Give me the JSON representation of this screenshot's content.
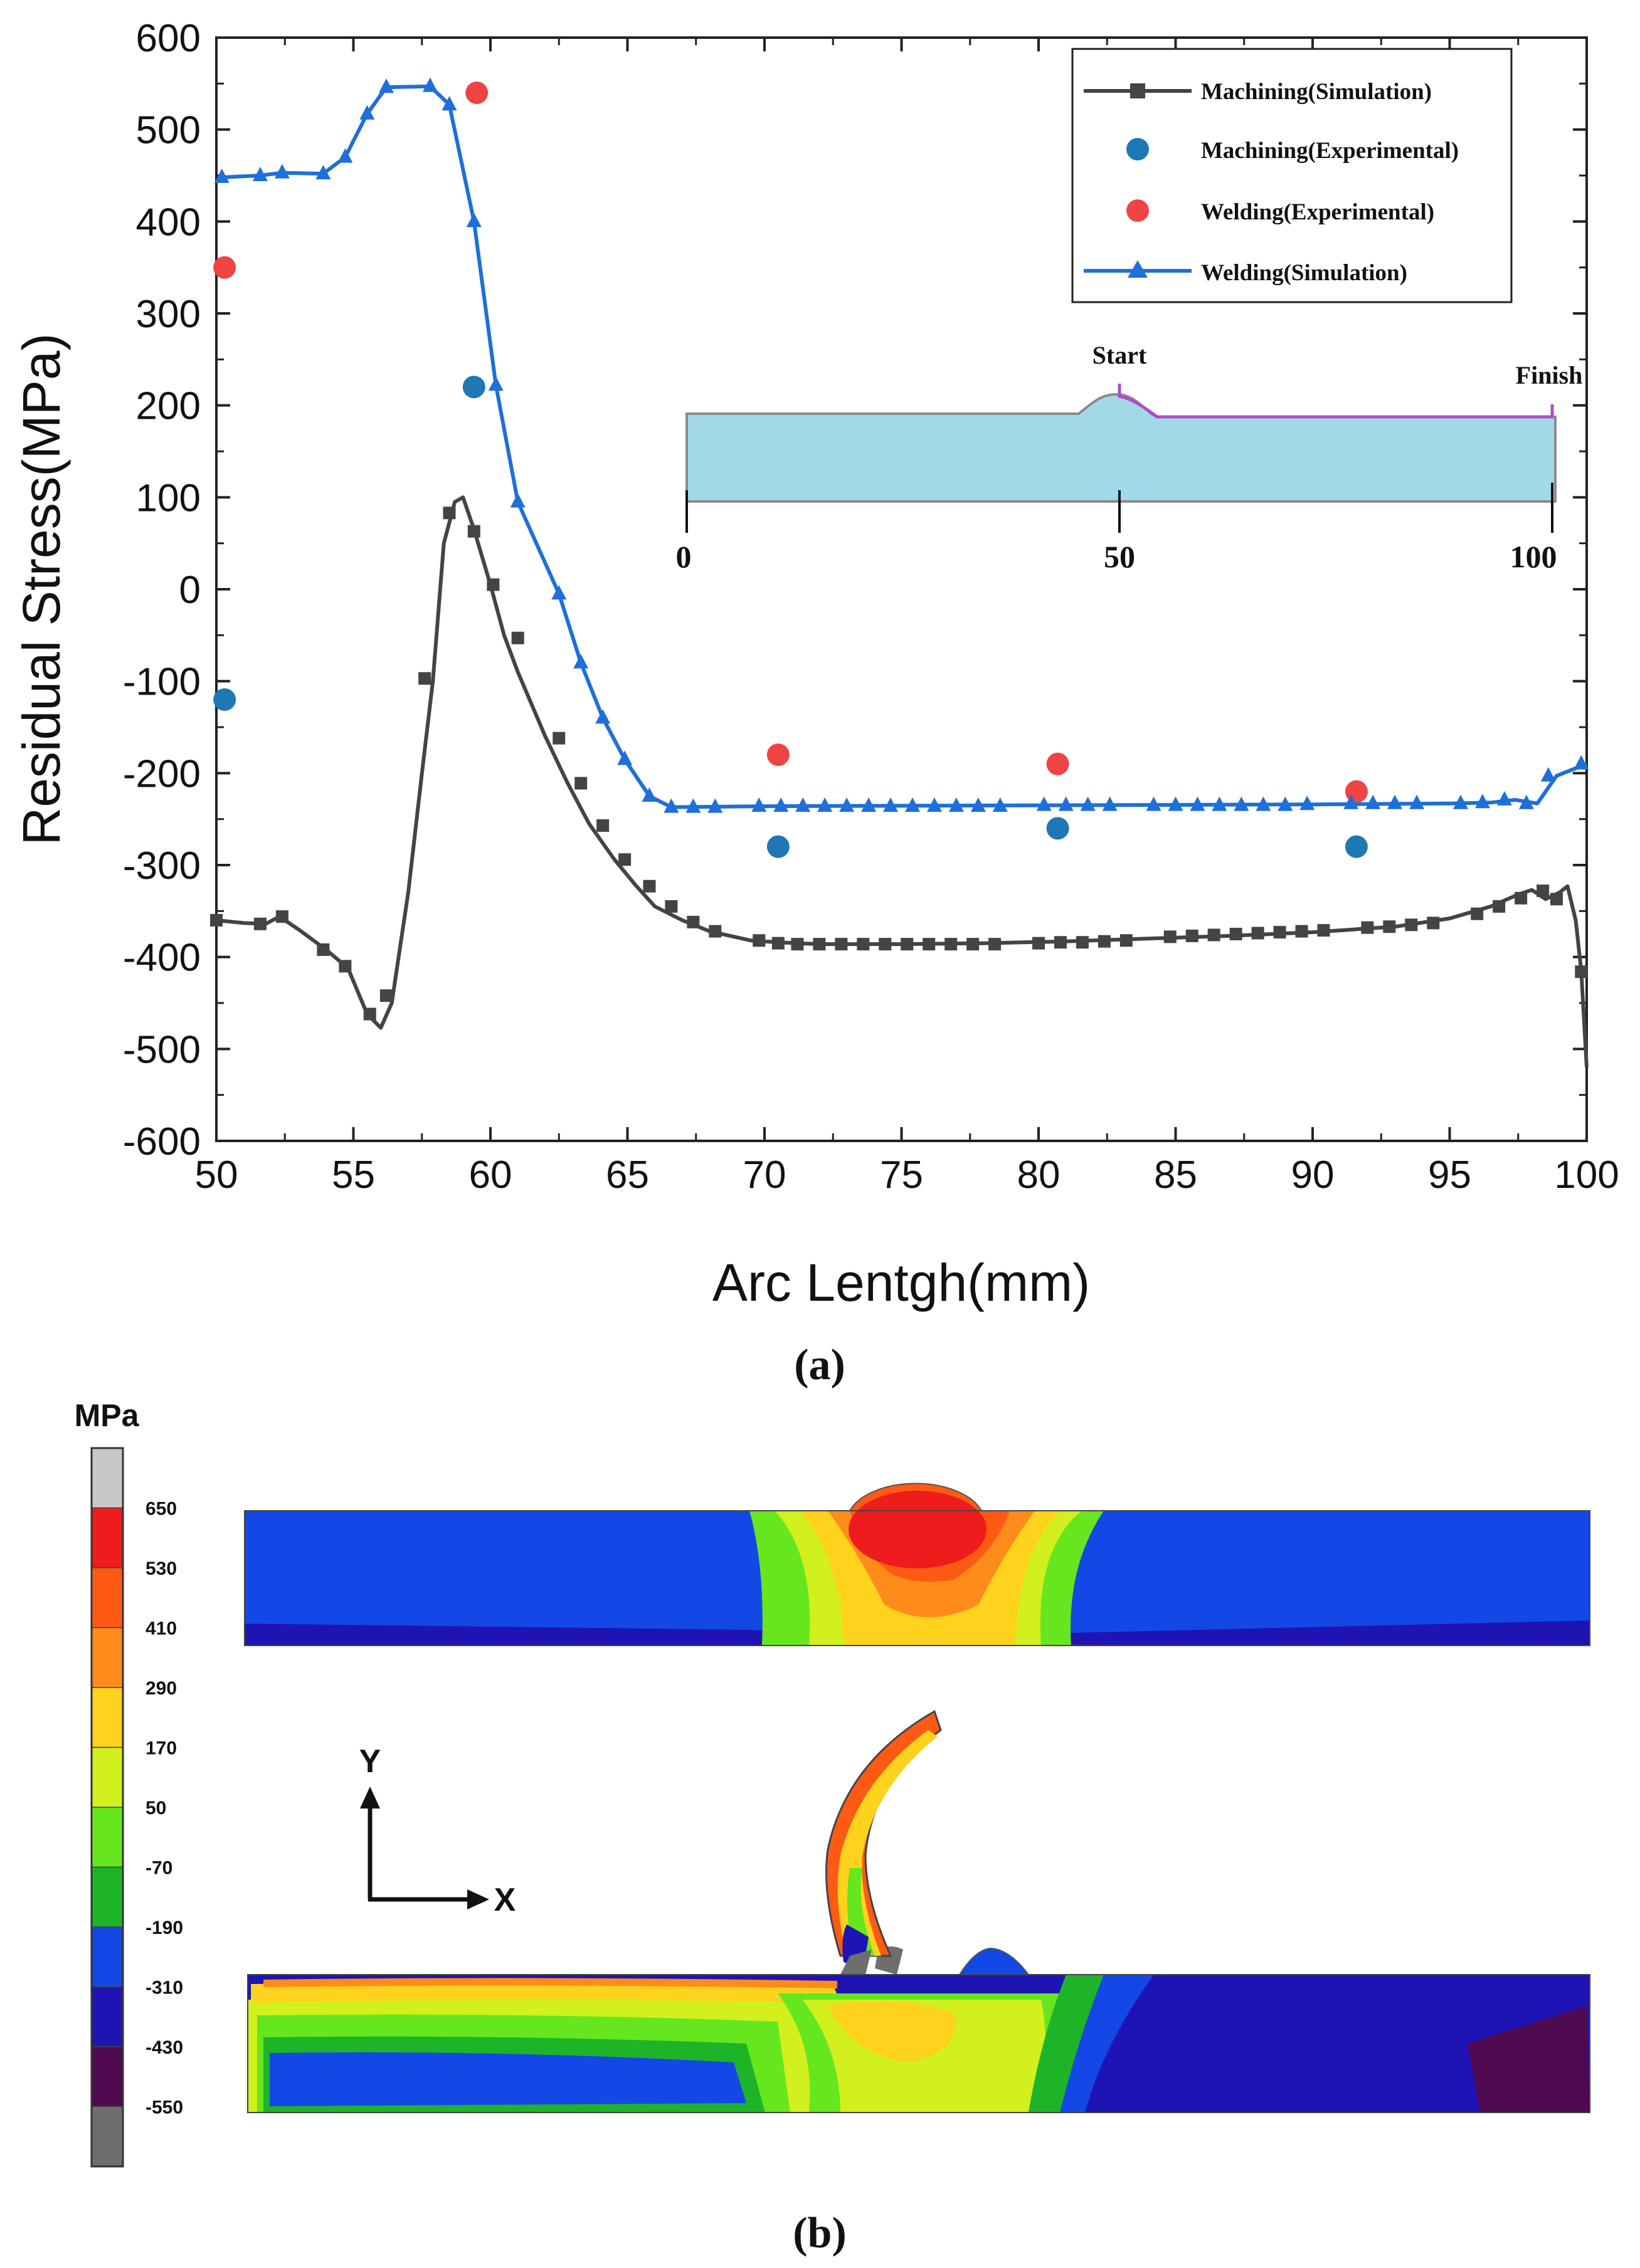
{
  "chart_data": {
    "type": "line",
    "xlabel": "Arc Lentgh(mm)",
    "ylabel": "Residual Stress(MPa)",
    "xlim": [
      50,
      100
    ],
    "ylim": [
      -600,
      600
    ],
    "xticks": [
      50,
      55,
      60,
      65,
      70,
      75,
      80,
      85,
      90,
      95,
      100
    ],
    "yticks": [
      -600,
      -500,
      -400,
      -300,
      -200,
      -100,
      0,
      100,
      200,
      300,
      400,
      500,
      600
    ],
    "legend_position": "top-right",
    "series": [
      {
        "name": "Machining(Simulation)",
        "color": "#444444",
        "marker": "square",
        "line": [
          [
            50,
            -360
          ],
          [
            51,
            -363
          ],
          [
            51.8,
            -364
          ],
          [
            52.3,
            -356
          ],
          [
            53,
            -370
          ],
          [
            54,
            -392
          ],
          [
            54.8,
            -412
          ],
          [
            55.5,
            -462
          ],
          [
            56,
            -477
          ],
          [
            56.4,
            -450
          ],
          [
            57,
            -330
          ],
          [
            57.5,
            -200
          ],
          [
            57.9,
            -100
          ],
          [
            58.3,
            50
          ],
          [
            58.7,
            95
          ],
          [
            59,
            100
          ],
          [
            59.4,
            65
          ],
          [
            60,
            5
          ],
          [
            60.5,
            -50
          ],
          [
            61,
            -90
          ],
          [
            62,
            -160
          ],
          [
            62.8,
            -210
          ],
          [
            63.6,
            -255
          ],
          [
            64.5,
            -293
          ],
          [
            65.3,
            -322
          ],
          [
            66,
            -345
          ],
          [
            67,
            -360
          ],
          [
            68,
            -372
          ],
          [
            69.5,
            -382
          ],
          [
            70.5,
            -384
          ],
          [
            72,
            -386
          ],
          [
            75,
            -386
          ],
          [
            78,
            -385
          ],
          [
            81,
            -383
          ],
          [
            84,
            -380
          ],
          [
            87,
            -377
          ],
          [
            90,
            -373
          ],
          [
            93,
            -367
          ],
          [
            95,
            -358
          ],
          [
            96.5,
            -345
          ],
          [
            97.5,
            -332
          ],
          [
            98,
            -327
          ],
          [
            98.5,
            -337
          ],
          [
            99,
            -330
          ],
          [
            99.3,
            -323
          ],
          [
            99.6,
            -360
          ],
          [
            99.8,
            -415
          ],
          [
            100,
            -520
          ]
        ],
        "markers": [
          [
            50,
            -360
          ],
          [
            51.6,
            -364
          ],
          [
            52.4,
            -356
          ],
          [
            53.9,
            -392
          ],
          [
            54.7,
            -410
          ],
          [
            55.6,
            -462
          ],
          [
            56.2,
            -442
          ],
          [
            57.6,
            -97
          ],
          [
            58.5,
            83
          ],
          [
            59.4,
            63
          ],
          [
            60.1,
            5
          ],
          [
            61,
            -53
          ],
          [
            62.5,
            -162
          ],
          [
            63.3,
            -211
          ],
          [
            64.1,
            -257
          ],
          [
            64.9,
            -294
          ],
          [
            65.8,
            -323
          ],
          [
            66.6,
            -345
          ],
          [
            67.4,
            -362
          ],
          [
            68.2,
            -372
          ],
          [
            69.8,
            -382
          ],
          [
            70.5,
            -385
          ],
          [
            71.2,
            -386
          ],
          [
            72,
            -386
          ],
          [
            72.8,
            -386
          ],
          [
            73.6,
            -386
          ],
          [
            74.4,
            -386
          ],
          [
            75.2,
            -386
          ],
          [
            76,
            -386
          ],
          [
            76.8,
            -386
          ],
          [
            77.6,
            -386
          ],
          [
            78.4,
            -386
          ],
          [
            80,
            -385
          ],
          [
            80.8,
            -384
          ],
          [
            81.6,
            -384
          ],
          [
            82.4,
            -383
          ],
          [
            83.2,
            -382
          ],
          [
            84.8,
            -378
          ],
          [
            85.6,
            -377
          ],
          [
            86.4,
            -376
          ],
          [
            87.2,
            -375
          ],
          [
            88,
            -374
          ],
          [
            88.8,
            -373
          ],
          [
            89.6,
            -372
          ],
          [
            90.4,
            -371
          ],
          [
            92,
            -368
          ],
          [
            92.8,
            -367
          ],
          [
            93.6,
            -365
          ],
          [
            94.4,
            -363
          ],
          [
            96,
            -353
          ],
          [
            96.8,
            -345
          ],
          [
            97.6,
            -336
          ],
          [
            98.4,
            -328
          ],
          [
            98.9,
            -337
          ],
          [
            99.8,
            -416
          ]
        ]
      },
      {
        "name": "Machining(Experimental)",
        "color": "#1f77b4",
        "marker": "circle",
        "points": [
          [
            50.3,
            -120
          ],
          [
            59.4,
            220
          ],
          [
            70.5,
            -280
          ],
          [
            80.7,
            -260
          ],
          [
            91.6,
            -280
          ]
        ]
      },
      {
        "name": "Welding(Experimental)",
        "color": "#ef4444",
        "marker": "circle",
        "points": [
          [
            50.3,
            350
          ],
          [
            59.5,
            540
          ],
          [
            70.5,
            -180
          ],
          [
            80.7,
            -190
          ],
          [
            91.6,
            -220
          ]
        ]
      },
      {
        "name": "Welding(Simulation)",
        "color": "#1e6fd9",
        "marker": "triangle",
        "line": [
          [
            50.2,
            448
          ],
          [
            51.6,
            450
          ],
          [
            52.4,
            453
          ],
          [
            53.9,
            452
          ],
          [
            54.7,
            470
          ],
          [
            55.5,
            517
          ],
          [
            56.2,
            546
          ],
          [
            57.8,
            547
          ],
          [
            58.5,
            527
          ],
          [
            59.4,
            400
          ],
          [
            60.2,
            222
          ],
          [
            61,
            95
          ],
          [
            62.5,
            -5
          ],
          [
            63.3,
            -80
          ],
          [
            64.1,
            -140
          ],
          [
            64.9,
            -185
          ],
          [
            65.8,
            -225
          ],
          [
            66.6,
            -237
          ],
          [
            70,
            -236
          ],
          [
            80,
            -235
          ],
          [
            90,
            -234
          ],
          [
            95,
            -233
          ],
          [
            96.5,
            -232
          ],
          [
            97.4,
            -229
          ],
          [
            98.2,
            -233
          ],
          [
            98.9,
            -203
          ],
          [
            100,
            -190
          ]
        ],
        "markers": [
          [
            50.2,
            448
          ],
          [
            51.6,
            450
          ],
          [
            52.4,
            453
          ],
          [
            53.9,
            452
          ],
          [
            54.7,
            470
          ],
          [
            55.5,
            517
          ],
          [
            56.2,
            546
          ],
          [
            57.8,
            547
          ],
          [
            58.5,
            527
          ],
          [
            59.4,
            400
          ],
          [
            60.2,
            222
          ],
          [
            61,
            95
          ],
          [
            62.5,
            -5
          ],
          [
            63.3,
            -80
          ],
          [
            64.1,
            -140
          ],
          [
            64.9,
            -185
          ],
          [
            65.8,
            -225
          ],
          [
            66.6,
            -237
          ],
          [
            67.4,
            -237
          ],
          [
            68.2,
            -237
          ],
          [
            69.8,
            -236
          ],
          [
            70.6,
            -236
          ],
          [
            71.4,
            -236
          ],
          [
            72.2,
            -236
          ],
          [
            73,
            -236
          ],
          [
            73.8,
            -236
          ],
          [
            74.6,
            -236
          ],
          [
            75.4,
            -236
          ],
          [
            76.2,
            -236
          ],
          [
            77,
            -236
          ],
          [
            77.8,
            -236
          ],
          [
            78.6,
            -236
          ],
          [
            80.2,
            -235
          ],
          [
            81,
            -235
          ],
          [
            81.8,
            -235
          ],
          [
            82.6,
            -235
          ],
          [
            84.2,
            -235
          ],
          [
            85,
            -235
          ],
          [
            85.8,
            -235
          ],
          [
            86.6,
            -235
          ],
          [
            87.4,
            -235
          ],
          [
            88.2,
            -235
          ],
          [
            89,
            -235
          ],
          [
            89.8,
            -234
          ],
          [
            91.4,
            -233
          ],
          [
            92.2,
            -233
          ],
          [
            93,
            -233
          ],
          [
            93.8,
            -233
          ],
          [
            95.4,
            -233
          ],
          [
            96.2,
            -232
          ],
          [
            97,
            -229
          ],
          [
            97.8,
            -233
          ],
          [
            98.6,
            -203
          ],
          [
            99.8,
            -190
          ]
        ]
      }
    ],
    "caption": "(a)"
  },
  "inset": {
    "start_label": "Start",
    "finish_label": "Finish",
    "ticks": [
      "0",
      "50",
      "100"
    ]
  },
  "contour": {
    "unit": "MPa",
    "levels": [
      "650",
      "530",
      "410",
      "290",
      "170",
      "50",
      "-70",
      "-190",
      "-310",
      "-430",
      "-550"
    ],
    "level_colors": [
      "#c8c8c8",
      "#ee1c1c",
      "#ff5a14",
      "#ff8c1a",
      "#ffd21e",
      "#d2f01e",
      "#66e61e",
      "#1eb428",
      "#1448e6",
      "#1e14b4",
      "#500a50",
      "#6e6e6e"
    ],
    "axis_y": "Y",
    "axis_x": "X",
    "caption": "(b)"
  }
}
